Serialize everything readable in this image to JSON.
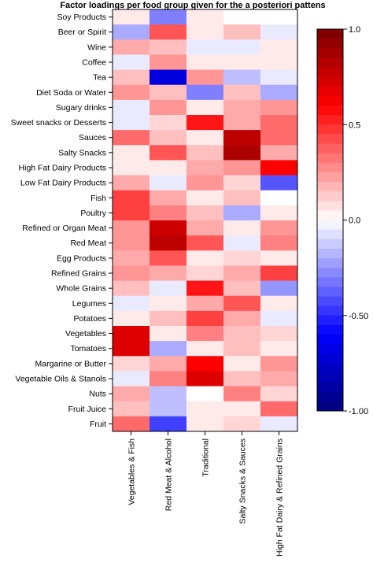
{
  "chart_data": {
    "type": "heatmap",
    "title": "Factor loadings per food group given for the a posteriori pattens",
    "columns": [
      "Vegetables & Fish",
      "Red Meat & Alcohol",
      "Traditional",
      "Salty Snacks & Sauces",
      "High Fat Dairy & Refined Grains"
    ],
    "rows": [
      "Soy Products",
      "Beer or Spirit",
      "Wine",
      "Coffee",
      "Tea",
      "Diet Soda or Water",
      "Sugary drinks",
      "Sweet snacks or Desserts",
      "Sauces",
      "Salty Snacks",
      "High Fat Dairy Products",
      "Low Fat Dairy Products",
      "Fish",
      "Poultry",
      "Refined or Organ Meat",
      "Red Meat",
      "Egg Products",
      "Refined Grains",
      "Whole Grains",
      "Legumes",
      "Potatoes",
      "Vegetables",
      "Tomatoes",
      "Margarine or Butter",
      "Vegetable Oils & Stanols",
      "Nuts",
      "Fruit Juice",
      "Fruit"
    ],
    "values": [
      [
        0.05,
        -0.3,
        0.05,
        0.0,
        0.0
      ],
      [
        -0.2,
        0.4,
        0.05,
        0.15,
        -0.05
      ],
      [
        0.2,
        0.15,
        -0.05,
        -0.05,
        0.05
      ],
      [
        -0.05,
        0.25,
        0.05,
        0.05,
        0.05
      ],
      [
        0.15,
        -0.7,
        0.25,
        -0.15,
        -0.05
      ],
      [
        0.25,
        0.15,
        -0.3,
        0.15,
        -0.2
      ],
      [
        -0.05,
        0.25,
        0.05,
        0.2,
        0.25
      ],
      [
        -0.05,
        0.1,
        0.55,
        0.2,
        0.35
      ],
      [
        0.35,
        0.15,
        0.05,
        0.8,
        0.35
      ],
      [
        0.05,
        0.4,
        0.15,
        0.85,
        0.2
      ],
      [
        0.05,
        0.05,
        0.2,
        0.25,
        0.6
      ],
      [
        0.2,
        -0.05,
        0.25,
        0.1,
        -0.4
      ],
      [
        0.45,
        0.2,
        0.05,
        0.15,
        0.0
      ],
      [
        0.45,
        0.3,
        0.15,
        -0.2,
        0.05
      ],
      [
        0.25,
        0.75,
        0.2,
        0.05,
        0.25
      ],
      [
        0.25,
        0.8,
        0.4,
        -0.05,
        0.3
      ],
      [
        0.2,
        0.4,
        0.05,
        0.1,
        0.05
      ],
      [
        0.25,
        0.2,
        0.1,
        0.2,
        0.45
      ],
      [
        0.15,
        -0.05,
        0.55,
        0.15,
        -0.25
      ],
      [
        -0.05,
        0.05,
        0.2,
        0.4,
        0.05
      ],
      [
        0.05,
        0.15,
        0.45,
        0.2,
        -0.05
      ],
      [
        0.7,
        0.05,
        0.3,
        0.15,
        0.1
      ],
      [
        0.7,
        -0.2,
        0.05,
        0.15,
        0.05
      ],
      [
        0.1,
        0.2,
        0.6,
        0.05,
        0.25
      ],
      [
        -0.05,
        0.3,
        0.7,
        0.15,
        0.2
      ],
      [
        0.2,
        -0.15,
        0.0,
        0.3,
        0.1
      ],
      [
        0.15,
        -0.15,
        0.05,
        0.05,
        0.35
      ],
      [
        0.35,
        -0.45,
        0.05,
        0.1,
        -0.05
      ]
    ],
    "colorbar": {
      "range": [
        -1.0,
        1.0
      ],
      "tick_labels": [
        "1.0",
        "0.5",
        "0.0",
        "-0.50",
        "-1.00"
      ],
      "tick_values": [
        1.0,
        0.5,
        0.0,
        -0.5,
        -1.0
      ],
      "colors": {
        "low": "#00007a",
        "mid_low": "#0000ff",
        "zero": "#ffffff",
        "mid_high": "#ff0000",
        "high": "#7a0000"
      }
    },
    "legend": "right"
  }
}
